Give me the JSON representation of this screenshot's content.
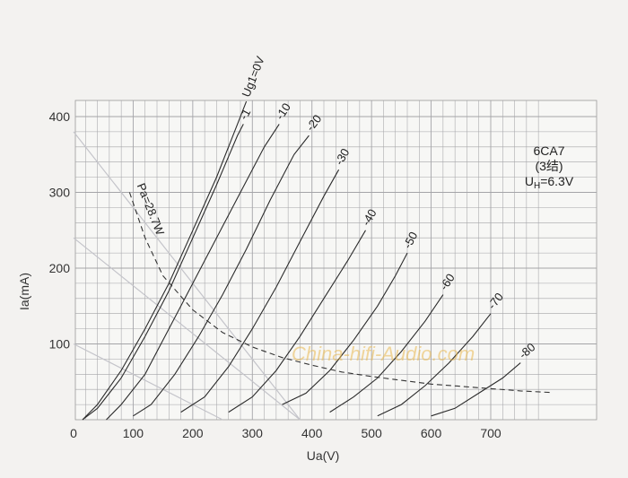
{
  "chart_data": {
    "type": "line",
    "title": "",
    "xlabel": "Ua(V)",
    "ylabel": "Ia(mA)",
    "xlim": [
      0,
      800
    ],
    "ylim": [
      0,
      420
    ],
    "x_ticks": [
      "0",
      "100",
      "200",
      "300",
      "400",
      "500",
      "600",
      "700"
    ],
    "y_ticks": [
      "100",
      "200",
      "300",
      "400"
    ],
    "grid": true,
    "info_box": {
      "line1": "6CA7",
      "line2": "(3结)",
      "line3_prefix": "U",
      "line3_sub": "H",
      "line3_suffix": "=6.3V"
    },
    "watermark": "China-hifi-Audio.com",
    "dissipation_curve": {
      "label": "Pa=28.7W",
      "style": "dashed",
      "points": [
        [
          94,
          300
        ],
        [
          120,
          240
        ],
        [
          150,
          190
        ],
        [
          200,
          145
        ],
        [
          250,
          115
        ],
        [
          300,
          96
        ],
        [
          350,
          82
        ],
        [
          400,
          72
        ],
        [
          450,
          63
        ],
        [
          500,
          57
        ],
        [
          550,
          52
        ],
        [
          600,
          47
        ],
        [
          650,
          44
        ],
        [
          700,
          41
        ],
        [
          750,
          38
        ],
        [
          800,
          36
        ]
      ]
    },
    "series": [
      {
        "name": "Ug1=0V",
        "label": "Ug1=0V",
        "points": [
          [
            15,
            0
          ],
          [
            40,
            20
          ],
          [
            80,
            65
          ],
          [
            120,
            120
          ],
          [
            160,
            180
          ],
          [
            200,
            250
          ],
          [
            240,
            320
          ],
          [
            275,
            390
          ],
          [
            290,
            420
          ]
        ]
      },
      {
        "name": "-1",
        "label": "-1",
        "points": [
          [
            15,
            0
          ],
          [
            40,
            15
          ],
          [
            80,
            55
          ],
          [
            120,
            110
          ],
          [
            160,
            170
          ],
          [
            200,
            240
          ],
          [
            240,
            310
          ],
          [
            275,
            375
          ],
          [
            285,
            390
          ]
        ]
      },
      {
        "name": "-10",
        "label": "-10",
        "points": [
          [
            55,
            0
          ],
          [
            80,
            20
          ],
          [
            120,
            60
          ],
          [
            160,
            120
          ],
          [
            200,
            180
          ],
          [
            240,
            240
          ],
          [
            280,
            300
          ],
          [
            320,
            360
          ],
          [
            345,
            390
          ]
        ]
      },
      {
        "name": "-20",
        "label": "-20",
        "points": [
          [
            100,
            5
          ],
          [
            130,
            20
          ],
          [
            170,
            60
          ],
          [
            210,
            110
          ],
          [
            250,
            165
          ],
          [
            290,
            225
          ],
          [
            330,
            290
          ],
          [
            370,
            350
          ],
          [
            395,
            375
          ]
        ]
      },
      {
        "name": "-30",
        "label": "-30",
        "points": [
          [
            180,
            10
          ],
          [
            220,
            30
          ],
          [
            260,
            70
          ],
          [
            300,
            120
          ],
          [
            340,
            175
          ],
          [
            380,
            235
          ],
          [
            420,
            295
          ],
          [
            445,
            330
          ]
        ]
      },
      {
        "name": "-40",
        "label": "-40",
        "points": [
          [
            260,
            10
          ],
          [
            300,
            30
          ],
          [
            340,
            65
          ],
          [
            380,
            110
          ],
          [
            420,
            160
          ],
          [
            460,
            210
          ],
          [
            490,
            250
          ]
        ]
      },
      {
        "name": "-50",
        "label": "-50",
        "points": [
          [
            350,
            20
          ],
          [
            390,
            35
          ],
          [
            430,
            65
          ],
          [
            470,
            105
          ],
          [
            510,
            150
          ],
          [
            540,
            190
          ],
          [
            560,
            220
          ]
        ]
      },
      {
        "name": "-60",
        "label": "-60",
        "points": [
          [
            430,
            10
          ],
          [
            470,
            30
          ],
          [
            510,
            55
          ],
          [
            550,
            90
          ],
          [
            590,
            130
          ],
          [
            620,
            165
          ]
        ]
      },
      {
        "name": "-70",
        "label": "-70",
        "points": [
          [
            510,
            5
          ],
          [
            550,
            20
          ],
          [
            590,
            45
          ],
          [
            630,
            75
          ],
          [
            670,
            110
          ],
          [
            700,
            140
          ]
        ]
      },
      {
        "name": "-80",
        "label": "-80",
        "points": [
          [
            600,
            5
          ],
          [
            640,
            15
          ],
          [
            680,
            35
          ],
          [
            720,
            55
          ],
          [
            750,
            75
          ]
        ]
      }
    ],
    "load_lines": [
      {
        "points": [
          [
            0,
            380
          ],
          [
            380,
            0
          ]
        ]
      },
      {
        "points": [
          [
            0,
            240
          ],
          [
            380,
            0
          ]
        ]
      },
      {
        "points": [
          [
            0,
            100
          ],
          [
            250,
            0
          ]
        ]
      }
    ]
  }
}
